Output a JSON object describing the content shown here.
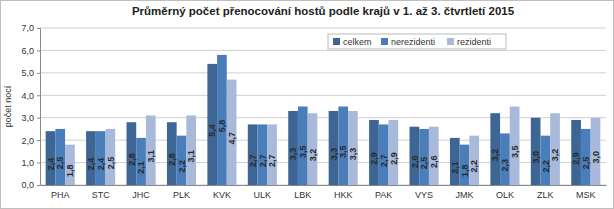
{
  "chart_data": {
    "type": "bar",
    "title": "Průměrný počet přenocování hostů podle krajů v 1. až 3. čtvrtletí 2015",
    "y_label": "počet nocí",
    "categories": [
      "PHA",
      "STC",
      "JHC",
      "PLK",
      "KVK",
      "ULK",
      "LBK",
      "HKK",
      "PAK",
      "VYS",
      "JMK",
      "OLK",
      "ZLK",
      "MSK"
    ],
    "series": [
      {
        "name": "celkem",
        "color": "#3d6695",
        "values": [
          2.4,
          2.4,
          2.8,
          2.8,
          5.4,
          2.7,
          3.3,
          3.3,
          2.9,
          2.6,
          2.1,
          3.2,
          3.0,
          2.9
        ],
        "value_labels": [
          "2,4",
          "2,4",
          "2,8",
          "2,8",
          "5,4",
          "2,7",
          "3,3",
          "3,3",
          "2,9",
          "2,6",
          "2,1",
          "3,2",
          "3,0",
          "2,9"
        ]
      },
      {
        "name": "nerezidenti",
        "color": "#4a7ebb",
        "values": [
          2.5,
          2.4,
          2.1,
          2.2,
          5.8,
          2.7,
          3.5,
          3.5,
          2.7,
          2.5,
          1.8,
          2.3,
          2.2,
          2.5
        ],
        "value_labels": [
          "2,5",
          "2,4",
          "2,1",
          "2,2",
          "5,8",
          "2,7",
          "3,5",
          "3,5",
          "2,7",
          "2,5",
          "1,8",
          "2,3",
          "2,2",
          "2,5"
        ]
      },
      {
        "name": "rezidenti",
        "color": "#a9b9da",
        "values": [
          1.8,
          2.5,
          3.1,
          3.1,
          4.7,
          2.7,
          3.2,
          3.3,
          2.9,
          2.6,
          2.2,
          3.5,
          3.2,
          3.0
        ],
        "value_labels": [
          "1,8",
          "2,5",
          "3,1",
          "3,1",
          "4,7",
          "2,7",
          "3,2",
          "3,3",
          "2,9",
          "2,6",
          "2,2",
          "3,5",
          "3,2",
          "3,0"
        ]
      }
    ],
    "ylim": [
      0,
      7
    ],
    "yticks": [
      {
        "value": 0,
        "label": "0,0"
      },
      {
        "value": 1,
        "label": "1,0"
      },
      {
        "value": 2,
        "label": "2,0"
      },
      {
        "value": 3,
        "label": "3,0"
      },
      {
        "value": 4,
        "label": "4,0"
      },
      {
        "value": 5,
        "label": "5,0"
      },
      {
        "value": 6,
        "label": "6,0"
      },
      {
        "value": 7,
        "label": "7,0"
      }
    ],
    "grid": true,
    "legend": "top-right",
    "data_labels": true
  }
}
